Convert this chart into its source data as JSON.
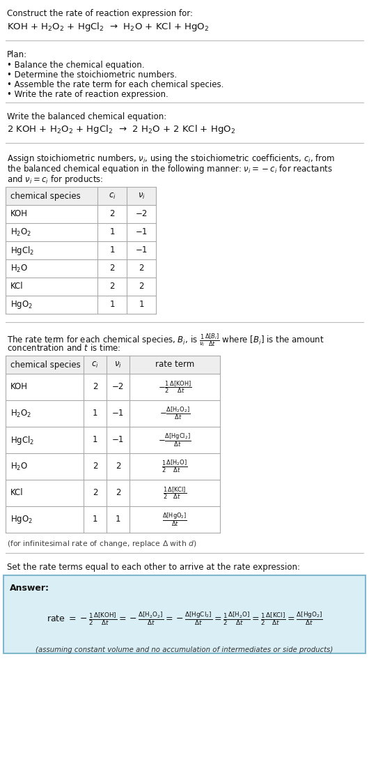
{
  "bg_color": "#ffffff",
  "section1_line1": "Construct the rate of reaction expression for:",
  "reaction_unbalanced": "KOH + H$_2$O$_2$ + HgCl$_2$  →  H$_2$O + KCl + HgO$_2$",
  "plan_header": "Plan:",
  "plan_items": [
    "• Balance the chemical equation.",
    "• Determine the stoichiometric numbers.",
    "• Assemble the rate term for each chemical species.",
    "• Write the rate of reaction expression."
  ],
  "balanced_header": "Write the balanced chemical equation:",
  "reaction_balanced": "2 KOH + H$_2$O$_2$ + HgCl$_2$  →  2 H$_2$O + 2 KCl + HgO$_2$",
  "stoich_intro_lines": [
    "Assign stoichiometric numbers, $\\nu_i$, using the stoichiometric coefficients, $c_i$, from",
    "the balanced chemical equation in the following manner: $\\nu_i = -c_i$ for reactants",
    "and $\\nu_i = c_i$ for products:"
  ],
  "table1_headers": [
    "chemical species",
    "$c_i$",
    "$\\nu_i$"
  ],
  "table1_rows": [
    [
      "KOH",
      "2",
      "−2"
    ],
    [
      "H$_2$O$_2$",
      "1",
      "−1"
    ],
    [
      "HgCl$_2$",
      "1",
      "−1"
    ],
    [
      "H$_2$O",
      "2",
      "2"
    ],
    [
      "KCl",
      "2",
      "2"
    ],
    [
      "HgO$_2$",
      "1",
      "1"
    ]
  ],
  "rate_intro_lines": [
    "The rate term for each chemical species, $B_i$, is $\\frac{1}{\\nu_i}\\frac{\\Delta[B_i]}{\\Delta t}$ where $[B_i]$ is the amount",
    "concentration and $t$ is time:"
  ],
  "table2_headers": [
    "chemical species",
    "$c_i$",
    "$\\nu_i$",
    "rate term"
  ],
  "table2_rows": [
    [
      "KOH",
      "2",
      "−2",
      "$-\\frac{1}{2}\\frac{\\Delta[\\mathrm{KOH}]}{\\Delta t}$"
    ],
    [
      "H$_2$O$_2$",
      "1",
      "−1",
      "$-\\frac{\\Delta[\\mathrm{H_2O_2}]}{\\Delta t}$"
    ],
    [
      "HgCl$_2$",
      "1",
      "−1",
      "$-\\frac{\\Delta[\\mathrm{HgCl_2}]}{\\Delta t}$"
    ],
    [
      "H$_2$O",
      "2",
      "2",
      "$\\frac{1}{2}\\frac{\\Delta[\\mathrm{H_2O}]}{\\Delta t}$"
    ],
    [
      "KCl",
      "2",
      "2",
      "$\\frac{1}{2}\\frac{\\Delta[\\mathrm{KCl}]}{\\Delta t}$"
    ],
    [
      "HgO$_2$",
      "1",
      "1",
      "$\\frac{\\Delta[\\mathrm{HgO_2}]}{\\Delta t}$"
    ]
  ],
  "infinitesimal_note": "(for infinitesimal rate of change, replace Δ with $d$)",
  "set_rate_text": "Set the rate terms equal to each other to arrive at the rate expression:",
  "answer_box_bg": "#daeef5",
  "answer_border_color": "#7fb8cc",
  "answer_label": "Answer:",
  "answer_note": "(assuming constant volume and no accumulation of intermediates or side products)"
}
